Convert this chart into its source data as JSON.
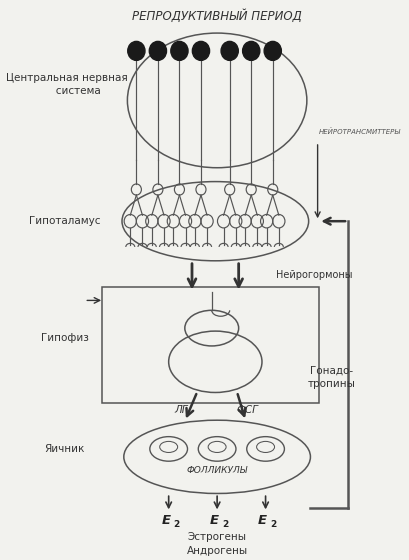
{
  "bg_color": "#f5f5f0",
  "title": "РЕПРОДУКТИВНЫЙ ПЕРИОД",
  "label_cns": "Центральная нервная\n       система",
  "label_hypo": "Гипоталамус",
  "label_pituitary": "Гипофиз",
  "label_ovary": "Яичник",
  "label_neurotransmitters": "НЕЙРОТРАНСМИТТЕРЫ",
  "label_neurohormones": "Нейрогормоны",
  "label_gonadotropins": "Гонадо-\nтропины",
  "label_lh": "ЛГ",
  "label_fsh": "ФСГ",
  "label_follicles": "ФОЛЛИКУЛЫ",
  "label_e2": "E",
  "label_estrogens": "Эстрогены\nАндрогены",
  "line_color": "#555555",
  "arrow_color": "#333333"
}
